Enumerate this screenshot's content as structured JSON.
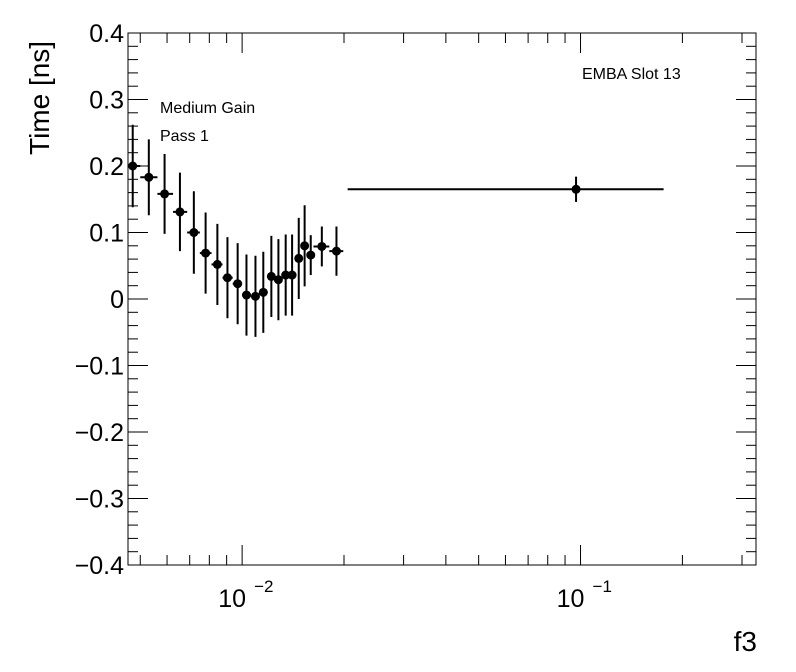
{
  "chart_data": {
    "type": "scatter",
    "title": "",
    "xlabel": "f3",
    "ylabel": "Time [ns]",
    "x_scale": "log",
    "xlim": [
      0.0046,
      0.33
    ],
    "ylim": [
      -0.4,
      0.4
    ],
    "grid": false,
    "annotations": [
      "Medium Gain",
      "Pass 1",
      "EMBA Slot 13"
    ],
    "y_tick_labels": [
      "0.4",
      "0.3",
      "0.2",
      "0.1",
      "0",
      "−0.1",
      "−0.2",
      "−0.3",
      "−0.4"
    ],
    "y_ticks": [
      0.4,
      0.3,
      0.2,
      0.1,
      0,
      -0.1,
      -0.2,
      -0.3,
      -0.4
    ],
    "x_tick_labels": [
      {
        "value": 0.01,
        "base": "10",
        "exp": "−2"
      },
      {
        "value": 0.1,
        "base": "10",
        "exp": "−1"
      }
    ],
    "series": [
      {
        "points": [
          {
            "x": 0.00475,
            "y": 0.2,
            "yerr": 0.062,
            "xlo": 0.00462,
            "xhi": 0.005
          },
          {
            "x": 0.0053,
            "y": 0.183,
            "yerr": 0.057,
            "xlo": 0.005,
            "xhi": 0.00562
          },
          {
            "x": 0.0059,
            "y": 0.158,
            "yerr": 0.06,
            "xlo": 0.00562,
            "xhi": 0.00625
          },
          {
            "x": 0.00655,
            "y": 0.131,
            "yerr": 0.059,
            "xlo": 0.00625,
            "xhi": 0.00688
          },
          {
            "x": 0.0072,
            "y": 0.1,
            "yerr": 0.062,
            "xlo": 0.00688,
            "xhi": 0.0075
          },
          {
            "x": 0.0078,
            "y": 0.069,
            "yerr": 0.061,
            "xlo": 0.0075,
            "xhi": 0.00812
          },
          {
            "x": 0.00845,
            "y": 0.052,
            "yerr": 0.061,
            "xlo": 0.00812,
            "xhi": 0.00875
          },
          {
            "x": 0.00905,
            "y": 0.032,
            "yerr": 0.061,
            "xlo": 0.00875,
            "xhi": 0.00938
          },
          {
            "x": 0.0097,
            "y": 0.023,
            "yerr": 0.061,
            "xlo": 0.00938,
            "xhi": 0.01
          },
          {
            "x": 0.0103,
            "y": 0.006,
            "yerr": 0.061,
            "xlo": 0.01,
            "xhi": 0.0106
          },
          {
            "x": 0.01095,
            "y": 0.004,
            "yerr": 0.061,
            "xlo": 0.0106,
            "xhi": 0.01125
          },
          {
            "x": 0.01155,
            "y": 0.01,
            "yerr": 0.061,
            "xlo": 0.01125,
            "xhi": 0.0119
          },
          {
            "x": 0.0122,
            "y": 0.034,
            "yerr": 0.061,
            "xlo": 0.0119,
            "xhi": 0.0125
          },
          {
            "x": 0.0128,
            "y": 0.029,
            "yerr": 0.061,
            "xlo": 0.0125,
            "xhi": 0.0131
          },
          {
            "x": 0.01345,
            "y": 0.036,
            "yerr": 0.061,
            "xlo": 0.0131,
            "xhi": 0.01375
          },
          {
            "x": 0.01405,
            "y": 0.036,
            "yerr": 0.061,
            "xlo": 0.01375,
            "xhi": 0.0144
          },
          {
            "x": 0.0147,
            "y": 0.061,
            "yerr": 0.061,
            "xlo": 0.0144,
            "xhi": 0.015
          },
          {
            "x": 0.0153,
            "y": 0.08,
            "yerr": 0.061,
            "xlo": 0.015,
            "xhi": 0.0156
          },
          {
            "x": 0.01595,
            "y": 0.066,
            "yerr": 0.03,
            "xlo": 0.0156,
            "xhi": 0.01625
          },
          {
            "x": 0.0172,
            "y": 0.079,
            "yerr": 0.03,
            "xlo": 0.01625,
            "xhi": 0.0181
          },
          {
            "x": 0.019,
            "y": 0.072,
            "yerr": 0.037,
            "xlo": 0.0181,
            "xhi": 0.0199
          },
          {
            "x": 0.097,
            "y": 0.165,
            "yerr": 0.019,
            "xlo": 0.0205,
            "xhi": 0.176
          }
        ]
      }
    ]
  }
}
